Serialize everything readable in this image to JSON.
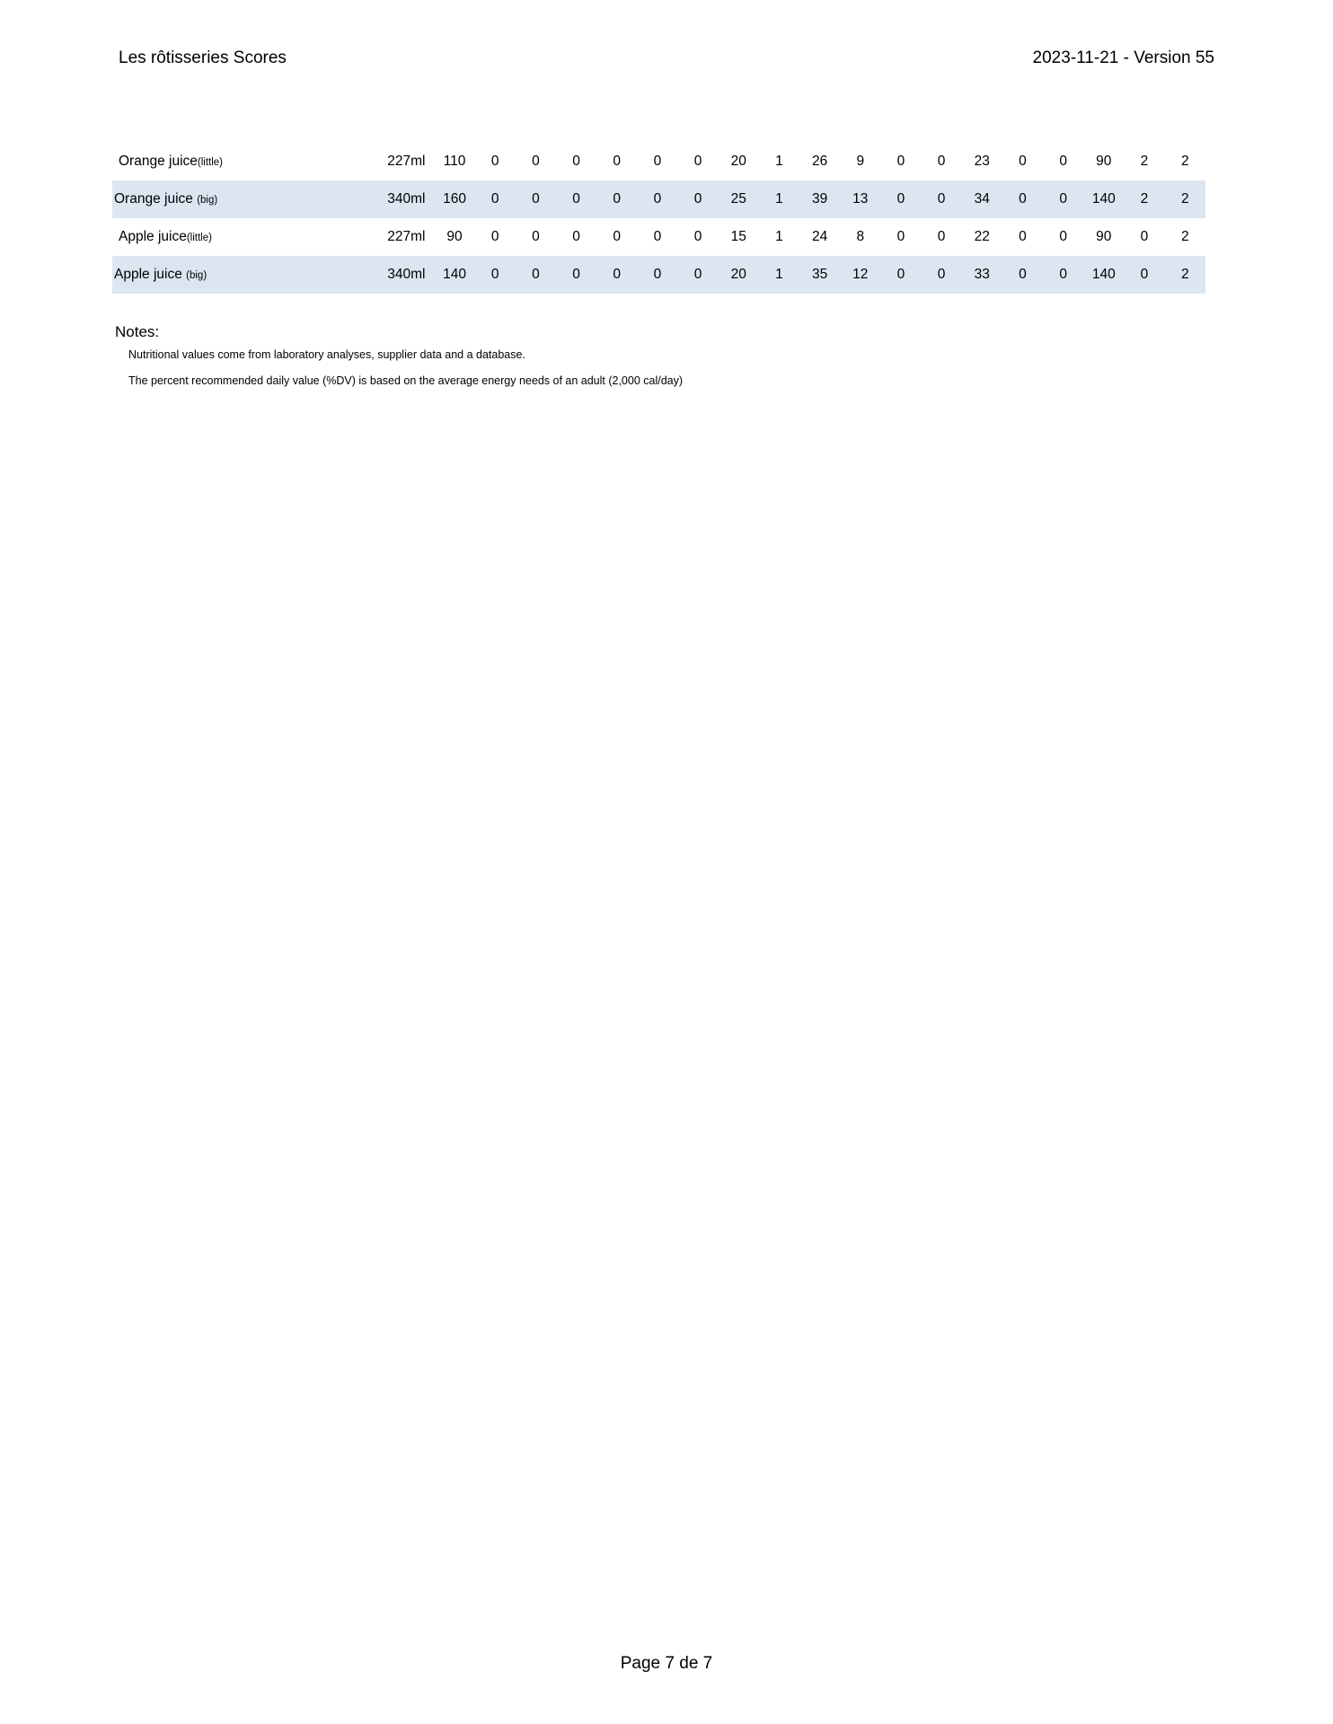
{
  "header": {
    "title": "Les rôtisseries Scores",
    "version": "2023-11-21 - Version 55"
  },
  "colors": {
    "row_alt": "#dce6f1"
  },
  "table": {
    "rows": [
      {
        "name": "Orange juice",
        "suffix": "(little)",
        "size": "227ml",
        "values": [
          "110",
          "0",
          "0",
          "0",
          "0",
          "0",
          "0",
          "20",
          "1",
          "26",
          "9",
          "0",
          "0",
          "23",
          "0",
          "0",
          "90",
          "2",
          "2"
        ]
      },
      {
        "name": "Orange juice ",
        "suffix": "(big)",
        "size": "340ml",
        "values": [
          "160",
          "0",
          "0",
          "0",
          "0",
          "0",
          "0",
          "25",
          "1",
          "39",
          "13",
          "0",
          "0",
          "34",
          "0",
          "0",
          "140",
          "2",
          "2"
        ]
      },
      {
        "name": "Apple juice",
        "suffix": "(little)",
        "size": "227ml",
        "values": [
          "90",
          "0",
          "0",
          "0",
          "0",
          "0",
          "0",
          "15",
          "1",
          "24",
          "8",
          "0",
          "0",
          "22",
          "0",
          "0",
          "90",
          "0",
          "2"
        ]
      },
      {
        "name": "Apple juice ",
        "suffix": "(big)",
        "size": "340ml",
        "values": [
          "140",
          "0",
          "0",
          "0",
          "0",
          "0",
          "0",
          "20",
          "1",
          "35",
          "12",
          "0",
          "0",
          "33",
          "0",
          "0",
          "140",
          "0",
          "2"
        ]
      }
    ]
  },
  "notes": {
    "title": "Notes:",
    "items": [
      "Nutritional values come from laboratory analyses, supplier data and a database.",
      "The percent recommended daily value (%DV) is based on the average energy needs of an adult (2,000 cal/day)"
    ]
  },
  "footer": {
    "page": "Page 7 de 7"
  }
}
